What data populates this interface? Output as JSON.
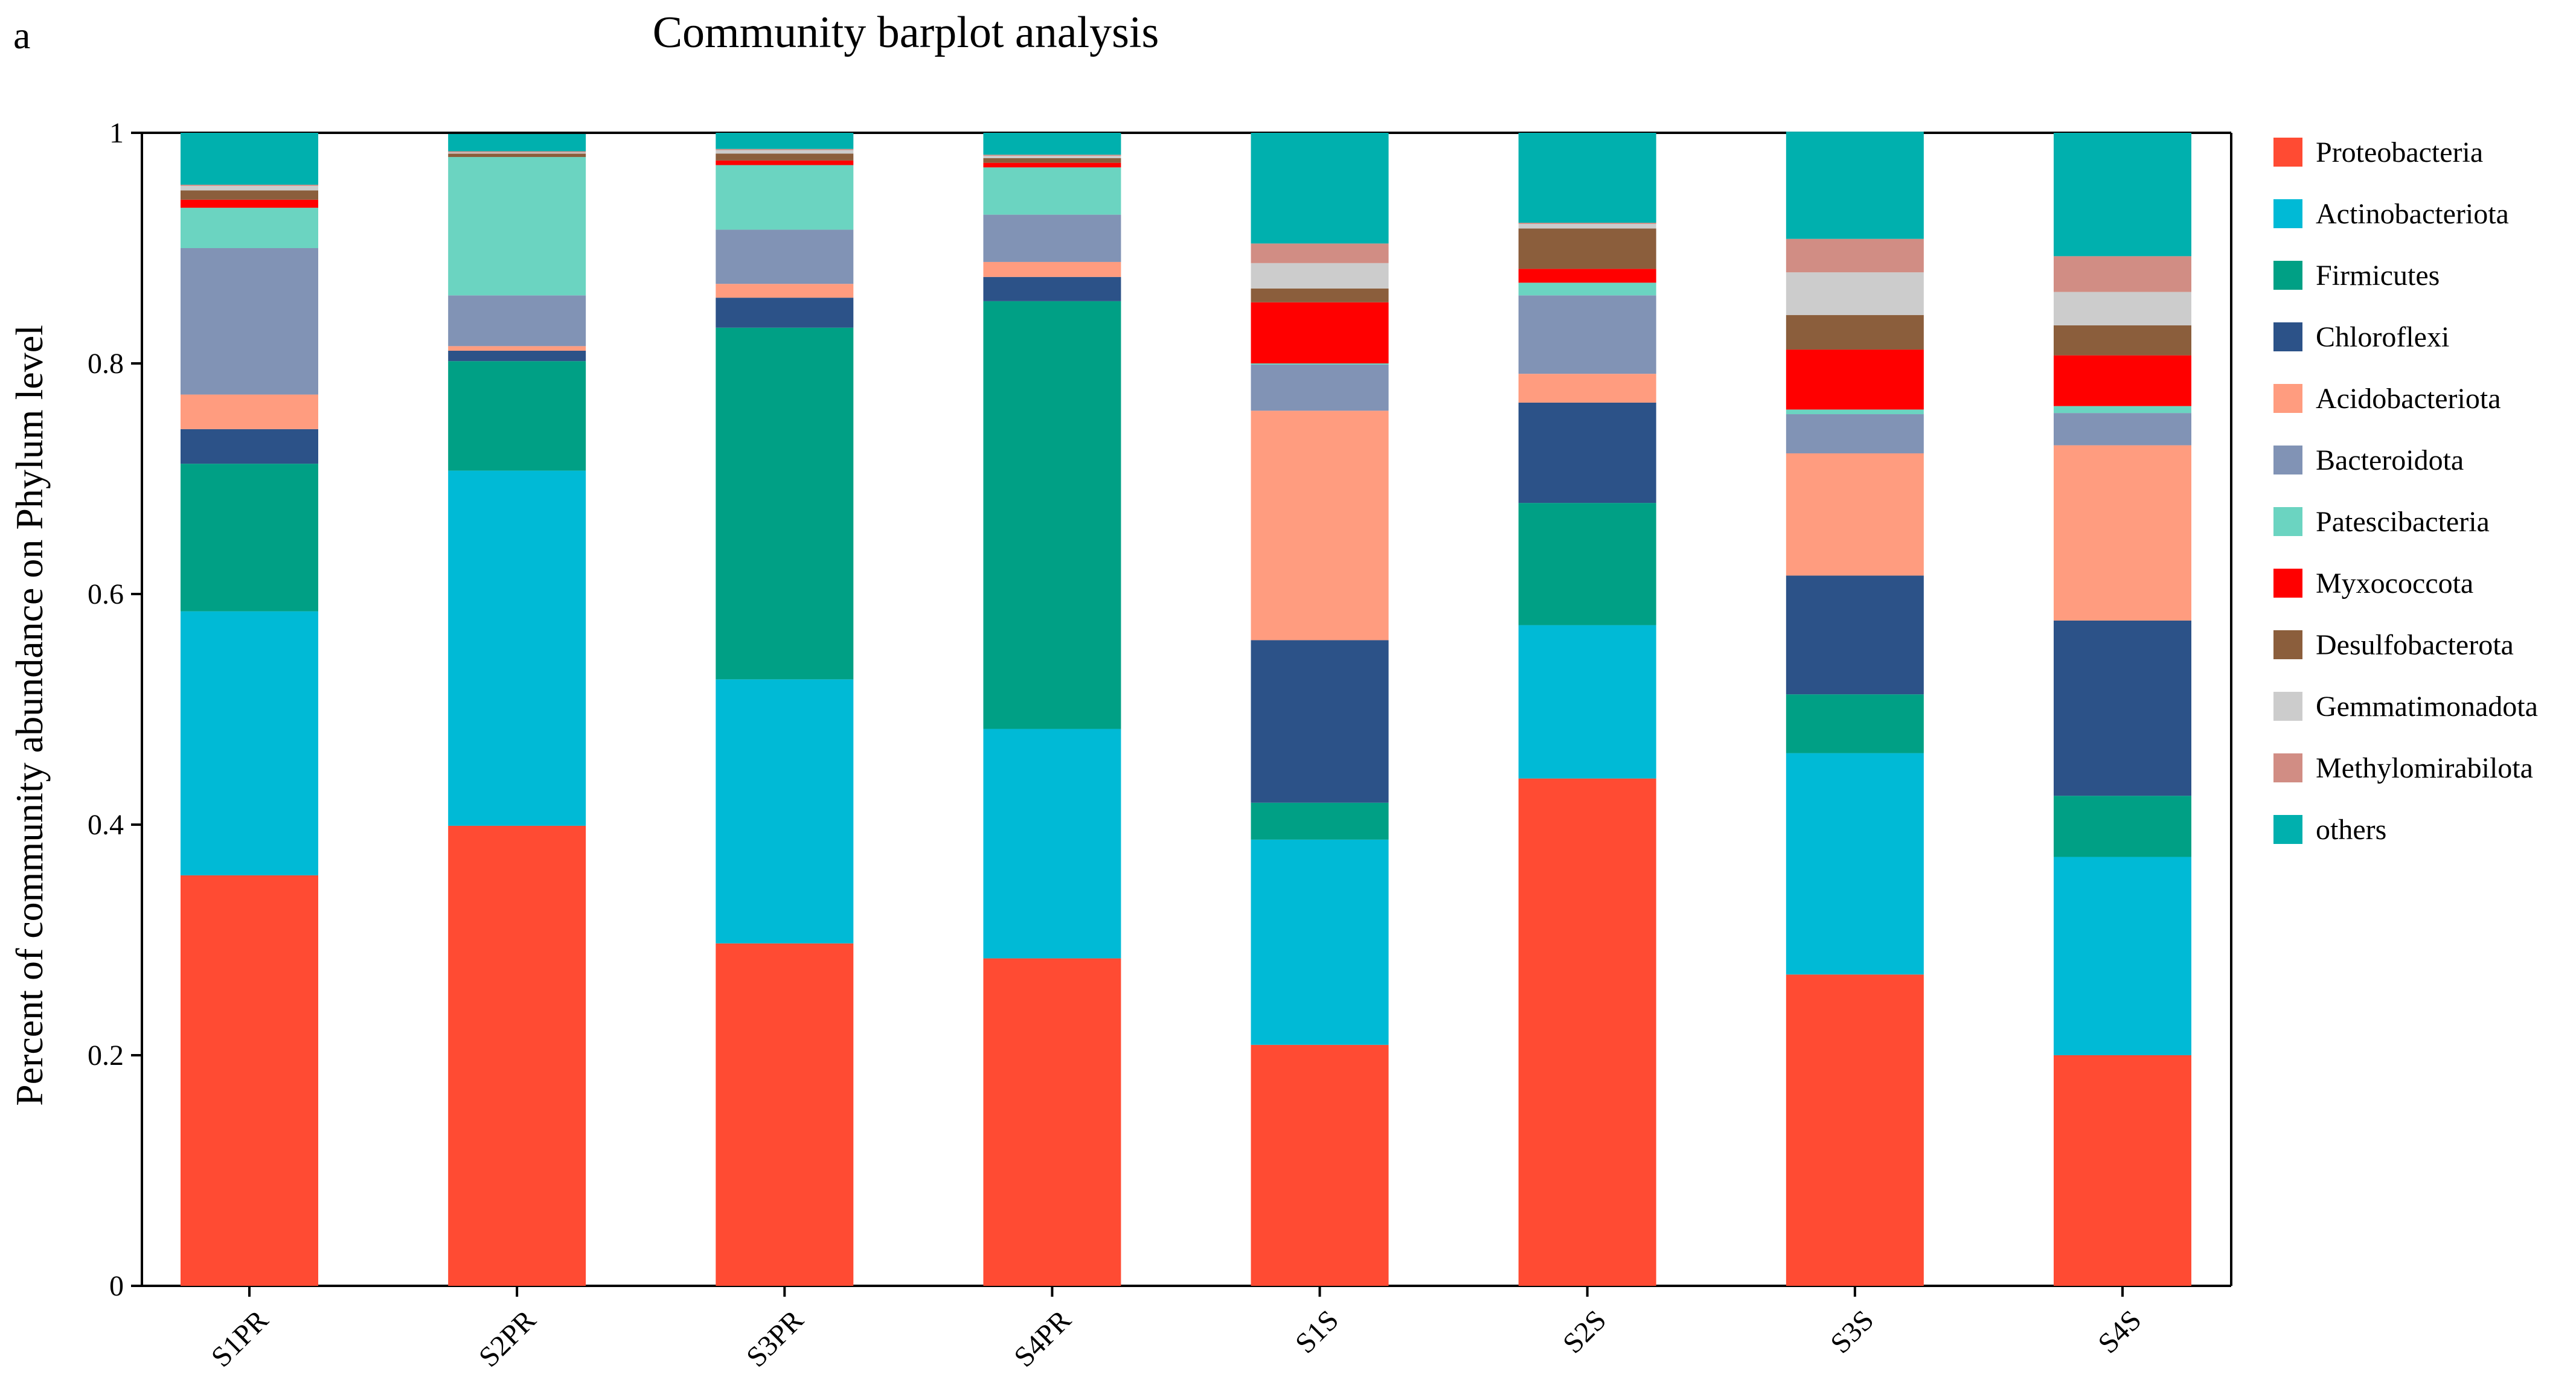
{
  "panel_label": "a",
  "chart_data": {
    "type": "bar",
    "stacked": true,
    "title": "Community barplot analysis",
    "xlabel": "",
    "ylabel": "Percent of community abundance on Phylum level",
    "ylim": [
      0,
      1
    ],
    "yticks": [
      0,
      0.2,
      0.4,
      0.6,
      0.8,
      1
    ],
    "ytick_labels": [
      "0",
      "0.2",
      "0.4",
      "0.6",
      "0.8",
      "1"
    ],
    "grid": false,
    "legend_position": "right",
    "categories": [
      "S1PR",
      "S2PR",
      "S3PR",
      "S4PR",
      "S1S",
      "S2S",
      "S3S",
      "S4S"
    ],
    "series": [
      {
        "name": "Proteobacteria",
        "color": "#FF4B33",
        "values": [
          0.356,
          0.399,
          0.297,
          0.284,
          0.209,
          0.44,
          0.27,
          0.2
        ]
      },
      {
        "name": "Actinobacteriota",
        "color": "#00BAD6",
        "values": [
          0.229,
          0.308,
          0.229,
          0.199,
          0.178,
          0.133,
          0.192,
          0.172
        ]
      },
      {
        "name": "Firmicutes",
        "color": "#00A085",
        "values": [
          0.128,
          0.095,
          0.305,
          0.371,
          0.032,
          0.106,
          0.051,
          0.053
        ]
      },
      {
        "name": "Chloroflexi",
        "color": "#2C5288",
        "values": [
          0.03,
          0.009,
          0.026,
          0.021,
          0.141,
          0.087,
          0.103,
          0.152
        ]
      },
      {
        "name": "Acidobacteriota",
        "color": "#FF9C7F",
        "values": [
          0.03,
          0.004,
          0.012,
          0.013,
          0.199,
          0.025,
          0.106,
          0.152
        ]
      },
      {
        "name": "Bacteroidota",
        "color": "#8193B5",
        "values": [
          0.127,
          0.044,
          0.047,
          0.041,
          0.04,
          0.068,
          0.034,
          0.028
        ]
      },
      {
        "name": "Patescibacteria",
        "color": "#6BD4C1",
        "values": [
          0.035,
          0.12,
          0.056,
          0.041,
          0.001,
          0.011,
          0.004,
          0.006
        ]
      },
      {
        "name": "Myxococcota",
        "color": "#FF0000",
        "values": [
          0.007,
          0.0,
          0.004,
          0.004,
          0.053,
          0.012,
          0.052,
          0.044
        ]
      },
      {
        "name": "Desulfobacterota",
        "color": "#8B5E3C",
        "values": [
          0.008,
          0.003,
          0.006,
          0.004,
          0.012,
          0.035,
          0.03,
          0.026
        ]
      },
      {
        "name": "Gemmatimonadota",
        "color": "#CCCCCC",
        "values": [
          0.004,
          0.001,
          0.003,
          0.002,
          0.022,
          0.004,
          0.037,
          0.029
        ]
      },
      {
        "name": "Methylomirabilota",
        "color": "#D18D84",
        "values": [
          0.001,
          0.001,
          0.001,
          0.001,
          0.017,
          0.001,
          0.029,
          0.031
        ]
      },
      {
        "name": "others",
        "color": "#00B0AE",
        "values": [
          0.045,
          0.015,
          0.014,
          0.019,
          0.096,
          0.078,
          0.093,
          0.107
        ]
      }
    ]
  }
}
